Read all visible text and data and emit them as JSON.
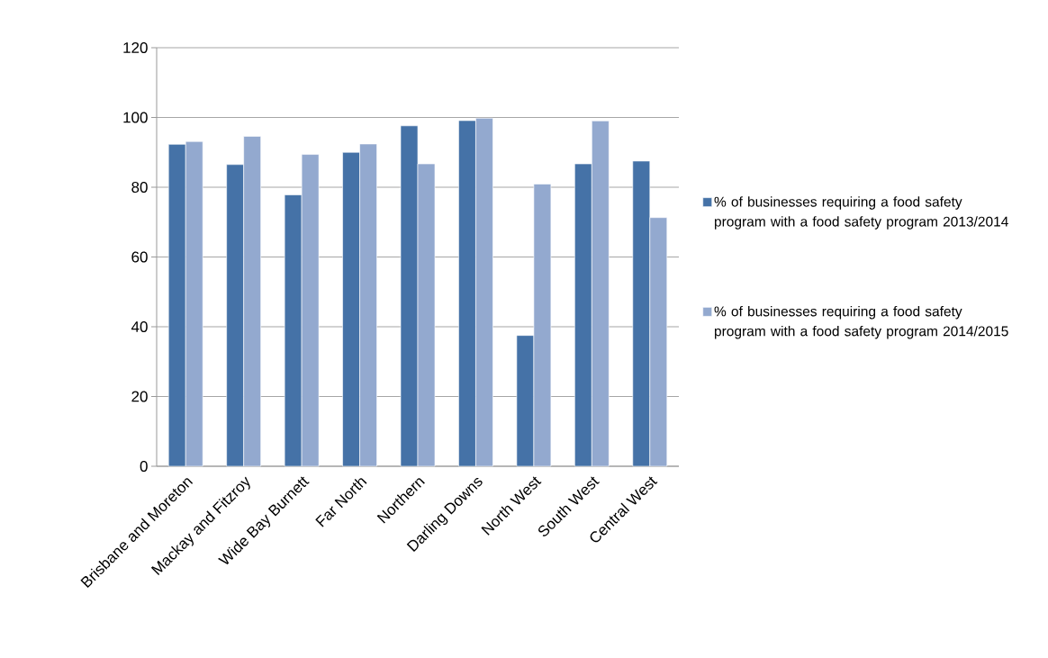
{
  "chart_data": {
    "type": "bar",
    "categories": [
      "Brisbane and Moreton",
      "Mackay and Fitzroy",
      "Wide Bay Burnett",
      "Far North",
      "Northern",
      "Darling Downs",
      "North West",
      "South West",
      "Central West"
    ],
    "series": [
      {
        "name": "% of businesses requiring a food safety program with a food safety program 2013/2014",
        "color": "#4572a7",
        "values": [
          92.3,
          86.5,
          77.8,
          90.0,
          97.6,
          99.1,
          37.5,
          86.7,
          87.5
        ]
      },
      {
        "name": "% of businesses requiring a food safety program with a food safety program 2014/2015",
        "color": "#93a9cf",
        "values": [
          93.1,
          94.6,
          89.4,
          92.4,
          86.7,
          99.8,
          80.9,
          99.0,
          71.3
        ]
      }
    ],
    "ylim": [
      0,
      120
    ],
    "yticks": [
      0,
      20,
      40,
      60,
      80,
      100,
      120
    ],
    "grid": "y",
    "legend": "right"
  }
}
